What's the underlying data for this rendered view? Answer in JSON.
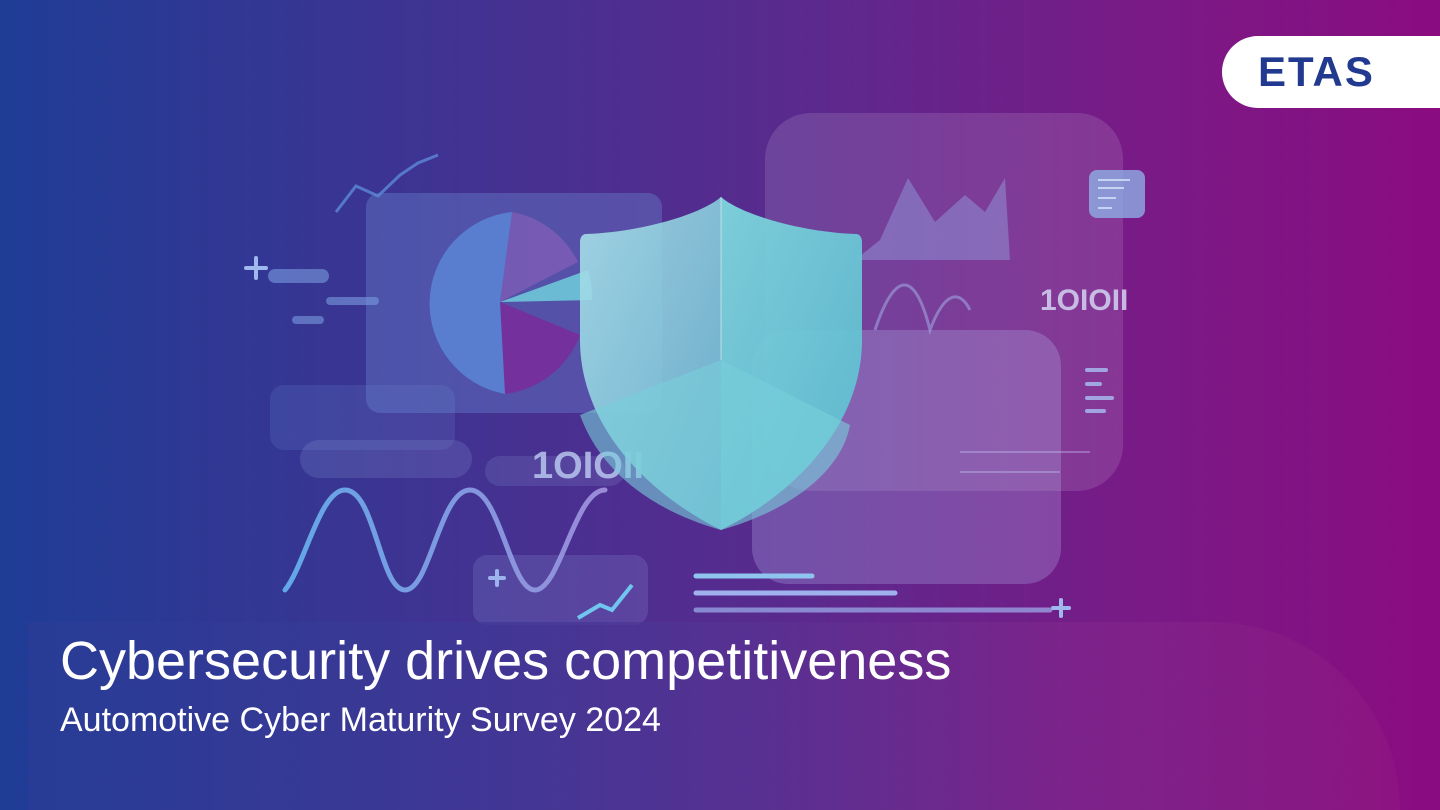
{
  "brand": {
    "logo_text": "ETAS"
  },
  "hero": {
    "title": "Cybersecurity drives competitiveness",
    "subtitle": "Automotive Cyber Maturity Survey 2024"
  },
  "illustration": {
    "binary_label": "1OIOII",
    "icons": [
      "shield-icon",
      "pie-chart-icon",
      "bar-chart-icon",
      "wave-icon",
      "plus-icon",
      "binary-code-icon"
    ]
  },
  "colors": {
    "gradient_start": "#1f3d96",
    "gradient_end": "#8a0c80",
    "shield": "#7fd3df",
    "logo": "#213a8f"
  }
}
